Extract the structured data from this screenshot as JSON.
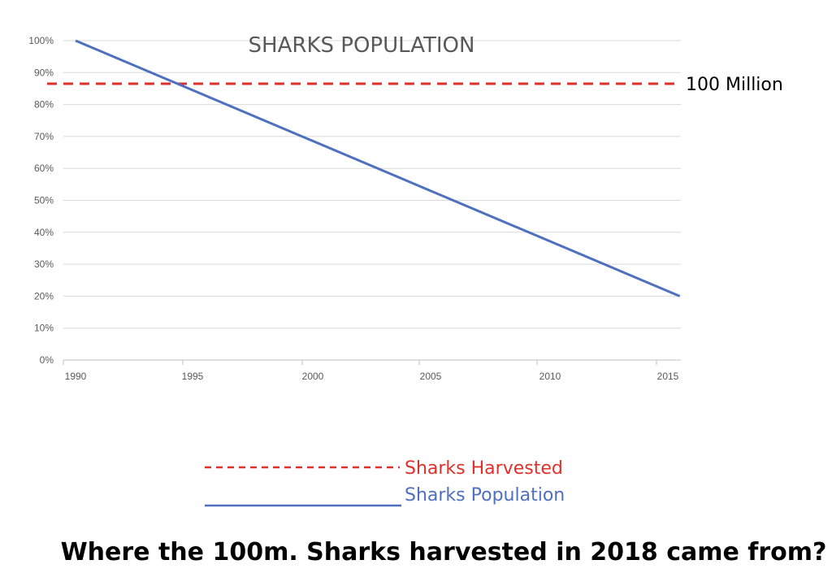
{
  "chart_data": {
    "type": "line",
    "title": "SHARKS POPULATION",
    "x": [
      1990,
      2015.5
    ],
    "xticks": [
      "1990",
      "1995",
      "2000",
      "2005",
      "2010",
      "2015"
    ],
    "xlim": [
      1990,
      2015.5
    ],
    "ylim": [
      0,
      100
    ],
    "yticks": [
      "0%",
      "10%",
      "20%",
      "30%",
      "40%",
      "50%",
      "60%",
      "70%",
      "80%",
      "90%",
      "100%"
    ],
    "grid": true,
    "series": [
      {
        "name": "Sharks Population",
        "values": [
          100,
          20
        ],
        "color": "#4f6fbf",
        "style": "solid"
      }
    ],
    "reference_line": {
      "name": "Sharks Harvested",
      "value": 86.5,
      "label": "100 Million",
      "color": "#e0302a",
      "style": "dashed"
    },
    "legend": [
      {
        "text": "Sharks Harvested",
        "color": "#e0302a",
        "style": "dashed"
      },
      {
        "text": "Sharks Population",
        "color": "#4f6fbf",
        "style": "solid"
      }
    ],
    "legend_placement": "bottom-center"
  },
  "question": "Where the 100m. Sharks harvested in 2018 came from?"
}
